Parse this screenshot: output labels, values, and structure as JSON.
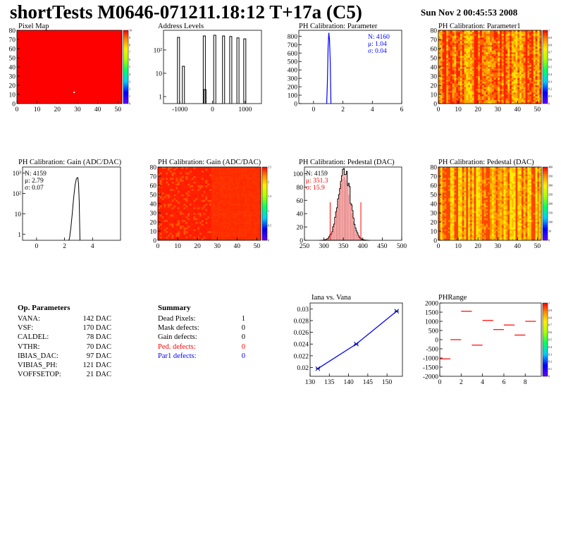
{
  "title": "shortTests M0646-071211.18:12 T+17a (C5)",
  "datetime": "Sun Nov  2 00:45:53 2008",
  "colors": {
    "red": "#ff0000",
    "blue": "#0000ff",
    "hist": "#000000",
    "pedRed": "#cc0000"
  },
  "chart_data": [
    {
      "type": "heatmap",
      "title": "Pixel Map",
      "xlim": [
        0,
        52
      ],
      "ylim": [
        0,
        80
      ],
      "x_ticks": [
        "0",
        "10",
        "20",
        "30",
        "40",
        "50"
      ],
      "y_ticks": [
        "0",
        "10",
        "20",
        "30",
        "40",
        "50",
        "60",
        "70",
        "80"
      ],
      "z_ticks": [
        "0",
        "1",
        "2",
        "3",
        "4",
        "5",
        "6",
        "7",
        "8",
        "9",
        "10"
      ],
      "fill": "uniform red (value 10)"
    },
    {
      "type": "bar",
      "title": "Address Levels",
      "ylog": true,
      "xlim": [
        -1500,
        1500
      ],
      "ylim": [
        0.5,
        700
      ],
      "x_ticks": [
        "-1000",
        "0",
        "1000"
      ],
      "y_ticks": [
        "1",
        "10",
        "10²"
      ],
      "peaks": [
        {
          "x": -1030,
          "y": 350
        },
        {
          "x": -880,
          "y": 20
        },
        {
          "x": -240,
          "y": 400
        },
        {
          "x": -220,
          "y": 2
        },
        {
          "x": 80,
          "y": 430
        },
        {
          "x": 350,
          "y": 400
        },
        {
          "x": 570,
          "y": 380
        },
        {
          "x": 790,
          "y": 330
        },
        {
          "x": 1000,
          "y": 300
        }
      ]
    },
    {
      "type": "bar",
      "title": "PH Calibration: Parameter",
      "xlim": [
        -1,
        6
      ],
      "ylim": [
        0,
        870
      ],
      "x_ticks": [
        "0",
        "2",
        "4",
        "6"
      ],
      "y_ticks": [
        "0",
        "100",
        "200",
        "300",
        "400",
        "500",
        "600",
        "700",
        "800"
      ],
      "stats": {
        "n": "N: 4160",
        "mean": "μ: 1.04",
        "sigma": "σ: 0.04"
      },
      "peak": {
        "x": 1.04,
        "y": 840
      }
    },
    {
      "type": "heatmap",
      "title": "PH Calibration: Parameter1",
      "xlim": [
        0,
        52
      ],
      "ylim": [
        0,
        80
      ],
      "x_ticks": [
        "0",
        "10",
        "20",
        "30",
        "40",
        "50"
      ],
      "y_ticks": [
        "0",
        "10",
        "20",
        "30",
        "40",
        "50",
        "60",
        "70",
        "80"
      ],
      "z_ticks": [
        "0",
        "0.1",
        "0.2",
        "0.3",
        "0.4",
        "0.5",
        "0.6",
        "0.7",
        "0.8",
        "0.9",
        "1"
      ]
    },
    {
      "type": "bar",
      "title": "PH Calibration: Gain (ADC/DAC)",
      "ylog": true,
      "xlim": [
        -1,
        6
      ],
      "ylim": [
        0.5,
        2000
      ],
      "x_ticks": [
        "0",
        "2",
        "4"
      ],
      "y_ticks": [
        "1",
        "10",
        "10²",
        "10³"
      ],
      "stats": {
        "n": "N: 4159",
        "mean": "μ: 2.79",
        "sigma": "σ: 0.07"
      },
      "peak": {
        "x": 2.9,
        "y": 600
      }
    },
    {
      "type": "heatmap",
      "title": "PH Calibration: Gain (ADC/DAC)",
      "xlim": [
        0,
        52
      ],
      "ylim": [
        0,
        80
      ],
      "x_ticks": [
        "0",
        "10",
        "20",
        "30",
        "40",
        "50"
      ],
      "y_ticks": [
        "0",
        "10",
        "20",
        "30",
        "40",
        "50",
        "60",
        "70",
        "80"
      ],
      "z_ticks": [
        "0",
        "0.5",
        "1",
        "1.5",
        "2",
        "2.5"
      ]
    },
    {
      "type": "bar",
      "title": "PH Calibration: Pedestal (DAC)",
      "xlim": [
        250,
        500
      ],
      "ylim": [
        0,
        110
      ],
      "x_ticks": [
        "250",
        "300",
        "350",
        "400",
        "450",
        "500"
      ],
      "y_ticks": [
        "0",
        "20",
        "40",
        "60",
        "80",
        "100"
      ],
      "stats": {
        "n": "N: 4159",
        "mean": "μ: 351.3",
        "sigma": "σ: 15.9"
      },
      "mean": 351.3,
      "sigma": 15.9,
      "peak": 105,
      "cut_lines": [
        316,
        395
      ]
    },
    {
      "type": "heatmap",
      "title": "PH Calibration: Pedestal (DAC)",
      "xlim": [
        0,
        52
      ],
      "ylim": [
        0,
        80
      ],
      "x_ticks": [
        "0",
        "10",
        "20",
        "30",
        "40",
        "50"
      ],
      "y_ticks": [
        "0",
        "10",
        "20",
        "30",
        "40",
        "50",
        "60",
        "70",
        "80"
      ],
      "z_ticks": [
        "0",
        "50",
        "100",
        "150",
        "200",
        "250",
        "300",
        "350",
        "400"
      ]
    },
    {
      "type": "line",
      "title": "Iana vs. Vana",
      "xlim": [
        130,
        154
      ],
      "ylim": [
        0.0185,
        0.031
      ],
      "x_ticks": [
        "130",
        "135",
        "140",
        "145",
        "150"
      ],
      "y_ticks": [
        "0.02",
        "0.022",
        "0.024",
        "0.026",
        "0.028",
        "0.03"
      ],
      "x": [
        132,
        142,
        152.5
      ],
      "y": [
        0.0198,
        0.024,
        0.0296
      ]
    },
    {
      "type": "scatter",
      "title": "PHRange",
      "xlim": [
        0,
        9.5
      ],
      "ylim": [
        -2000,
        2000
      ],
      "x_ticks": [
        "0",
        "2",
        "4",
        "6",
        "8"
      ],
      "y_ticks": [
        "-2000",
        "-1500",
        "-1000",
        "-500",
        "0",
        "500",
        "1000",
        "1500",
        "2000"
      ],
      "z_ticks": [
        "0",
        "0.1",
        "0.2",
        "0.3",
        "0.4",
        "0.5",
        "0.6",
        "0.7",
        "0.8",
        "0.9",
        "1"
      ],
      "x": [
        0.5,
        1.5,
        2.5,
        3.5,
        4.5,
        5.5,
        6.5,
        7.5,
        8.5
      ],
      "y": [
        -1050,
        0,
        1550,
        -300,
        1050,
        550,
        800,
        250,
        1000
      ]
    }
  ],
  "op_params": {
    "heading": "Op. Parameters",
    "rows": [
      {
        "name": "VANA:",
        "value": "142 DAC"
      },
      {
        "name": "VSF:",
        "value": "170 DAC"
      },
      {
        "name": "CALDEL:",
        "value": "78 DAC"
      },
      {
        "name": "VTHR:",
        "value": "70 DAC"
      },
      {
        "name": "IBIAS_DAC:",
        "value": "97 DAC"
      },
      {
        "name": "VIBIAS_PH:",
        "value": "121 DAC"
      },
      {
        "name": "VOFFSETOP:",
        "value": "21 DAC"
      }
    ]
  },
  "summary": {
    "heading": "Summary",
    "rows": [
      {
        "name": "Dead Pixels:",
        "value": "1",
        "color": "#000000"
      },
      {
        "name": "Mask defects:",
        "value": "0",
        "color": "#000000"
      },
      {
        "name": "Gain defects:",
        "value": "0",
        "color": "#000000"
      },
      {
        "name": "Ped. defects:",
        "value": "0",
        "color": "#ff0000"
      },
      {
        "name": "Par1 defects:",
        "value": "0",
        "color": "#0000ff"
      }
    ]
  }
}
